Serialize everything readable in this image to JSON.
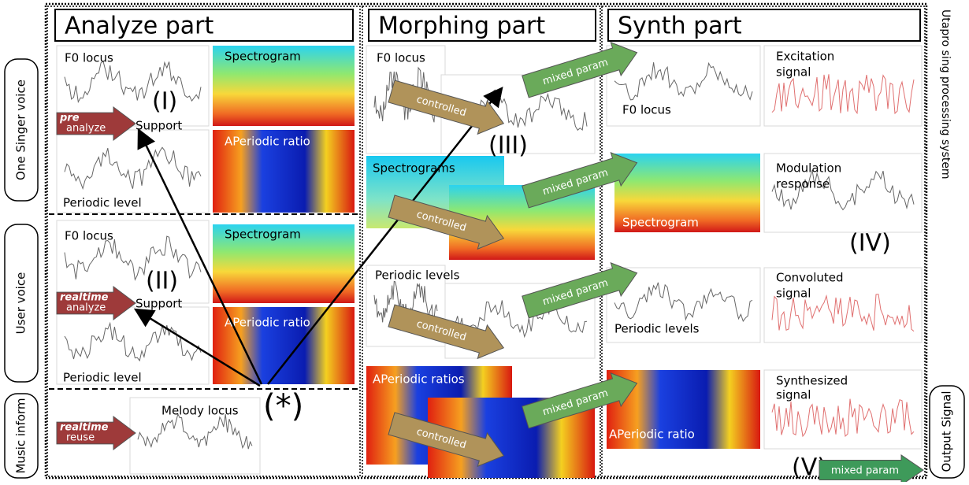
{
  "title": "Utapro sing processing system",
  "rows": [
    "One Singer voice",
    "User voice",
    "Music inform"
  ],
  "output": "Output Signal",
  "analyze": {
    "header": "Analyze part",
    "singer": {
      "f0": "F0 locus",
      "spectrogram": "Spectrogram",
      "marker": "(I)",
      "support": "Support",
      "aperiodic": "APeriodic ratio",
      "periodic": "Periodic level",
      "arrow": [
        "pre",
        "analyze"
      ]
    },
    "user": {
      "f0": "F0 locus",
      "spectrogram": "Spectrogram",
      "marker": "(II)",
      "support": "Support",
      "aperiodic": "APeriodic ratio",
      "periodic": "Periodic level",
      "arrow": [
        "realtime",
        "analyze"
      ]
    },
    "music": {
      "melody": "Melody locus",
      "marker": "(*)",
      "arrow": [
        "realtime",
        "reuse"
      ]
    }
  },
  "morphing": {
    "header": "Morphing part",
    "f0": "F0 locus",
    "marker": "(III)",
    "spectrograms": "Spectrograms",
    "periodic": "Periodic levels",
    "aperiodic": "APeriodic ratios",
    "controlled": [
      "controlled",
      "controlled",
      "controlled",
      "controlled"
    ],
    "mixed": [
      "mixed param",
      "mixed param",
      "mixed param",
      "mixed param"
    ]
  },
  "synth": {
    "header": "Synth part",
    "f0": "F0 locus",
    "excitation": [
      "Excitation",
      "signal"
    ],
    "modulation": [
      "Modulation",
      "response"
    ],
    "spectrogram": "Spectrogram",
    "marker_iv": "(IV)",
    "periodic": "Periodic levels",
    "convoluted": [
      "Convoluted",
      "signal"
    ],
    "aperiodic": "APeriodic ratio",
    "synthesized": [
      "Synthesized",
      "signal"
    ],
    "marker_v": "(V)",
    "output_arrow": "mixed param"
  }
}
